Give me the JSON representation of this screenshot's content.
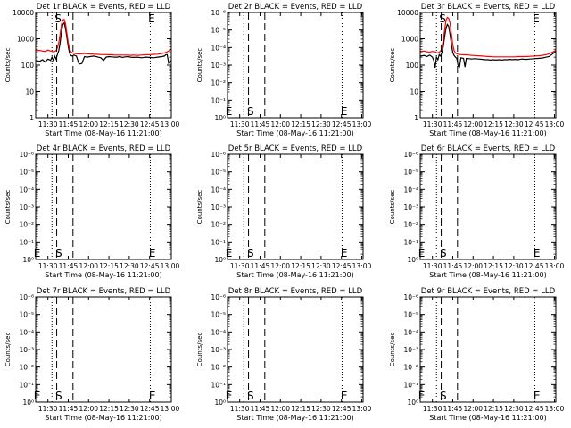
{
  "chart_data": [
    {
      "type": "line",
      "title": "Det 1r BLACK = Events, RED = LLD",
      "xlabel": "Start Time (08-May-16 11:21:00)",
      "ylabel": "Counts/sec",
      "x_ticks": [
        "11:30",
        "11:45",
        "12:00",
        "12:15",
        "12:30",
        "12:45",
        "13:00"
      ],
      "x_tick_minutes": [
        9,
        24,
        39,
        54,
        69,
        84,
        99
      ],
      "xlim_minutes": [
        0,
        100
      ],
      "y_scale": "log",
      "y_ticks": [
        "1",
        "10",
        "100",
        "1000",
        "10000"
      ],
      "ylim": [
        1,
        10000
      ],
      "vlines_dotted_minutes": [
        12,
        84.5
      ],
      "vlines_dashed_minutes": [
        15.5,
        27.5
      ],
      "markers": [
        {
          "label": "S",
          "x_minute": 16.5,
          "position": "top"
        },
        {
          "label": "E",
          "x_minute": 85.5,
          "position": "top"
        }
      ],
      "series": [
        {
          "name": "Events",
          "color": "#000000",
          "x": [
            0,
            3,
            5,
            7,
            9,
            11,
            12,
            13,
            14,
            15,
            16,
            17,
            18,
            19,
            20,
            21,
            22,
            23,
            24,
            25,
            26,
            27,
            28,
            29,
            30,
            32,
            34,
            36,
            38,
            40,
            43,
            46,
            48,
            50,
            52,
            54,
            56,
            58,
            60,
            62,
            64,
            66,
            68,
            70,
            72,
            75,
            78,
            81,
            84,
            87,
            90,
            93,
            95,
            96,
            97,
            98,
            99,
            100
          ],
          "y": [
            150,
            140,
            160,
            130,
            170,
            150,
            200,
            150,
            220,
            170,
            250,
            350,
            700,
            1800,
            3500,
            4000,
            2500,
            1100,
            500,
            280,
            230,
            220,
            240,
            230,
            220,
            110,
            115,
            210,
            200,
            210,
            220,
            200,
            190,
            150,
            200,
            210,
            205,
            200,
            200,
            210,
            195,
            205,
            210,
            200,
            195,
            200,
            190,
            200,
            195,
            190,
            200,
            210,
            220,
            250,
            250,
            120,
            140,
            150
          ]
        },
        {
          "name": "LLD",
          "color": "#ff0000",
          "x": [
            0,
            3,
            5,
            7,
            9,
            11,
            12,
            13,
            14,
            15,
            16,
            17,
            18,
            19,
            20,
            21,
            22,
            23,
            24,
            25,
            26,
            27,
            28,
            30,
            32,
            34,
            36,
            38,
            40,
            43,
            46,
            48,
            50,
            52,
            54,
            56,
            58,
            60,
            62,
            64,
            66,
            68,
            70,
            72,
            75,
            78,
            81,
            84,
            87,
            90,
            93,
            95,
            97,
            99,
            100
          ],
          "y": [
            350,
            360,
            340,
            330,
            370,
            340,
            330,
            320,
            330,
            350,
            450,
            700,
            1500,
            3500,
            5200,
            5500,
            3800,
            1600,
            700,
            400,
            320,
            290,
            280,
            270,
            265,
            270,
            275,
            270,
            265,
            260,
            255,
            250,
            250,
            250,
            245,
            245,
            240,
            240,
            240,
            240,
            240,
            240,
            235,
            240,
            235,
            240,
            245,
            250,
            255,
            260,
            275,
            290,
            320,
            370,
            400
          ]
        }
      ]
    },
    {
      "type": "line",
      "title": "Det 2r BLACK = Events, RED = LLD",
      "xlabel": "Start Time (08-May-16 11:21:00)",
      "ylabel": "Counts/sec",
      "x_ticks": [
        "11:30",
        "11:45",
        "12:00",
        "12:15",
        "12:30",
        "12:45",
        "13:00"
      ],
      "x_tick_minutes": [
        9,
        24,
        39,
        54,
        69,
        84,
        99
      ],
      "xlim_minutes": [
        0,
        100
      ],
      "y_scale": "log",
      "y_ticks": [
        "10⁰",
        "10⁻¹",
        "10⁻²",
        "10⁻³",
        "10⁻⁴",
        "10⁻⁵",
        "10⁻⁶"
      ],
      "ylim": [
        1,
        1e-06
      ],
      "vlines_dotted_minutes": [
        12,
        84.5
      ],
      "vlines_dashed_minutes": [
        15.5,
        27.5
      ],
      "markers": [
        {
          "label": "E",
          "x_minute": 1,
          "position": "bottom"
        },
        {
          "label": "S",
          "x_minute": 17,
          "position": "bottom"
        },
        {
          "label": "E",
          "x_minute": 86,
          "position": "bottom"
        }
      ],
      "series": []
    },
    {
      "type": "line",
      "title": "Det 3r BLACK = Events, RED = LLD",
      "xlabel": "Start Time (08-May-16 11:21:00)",
      "ylabel": "Counts/sec",
      "x_ticks": [
        "11:30",
        "11:45",
        "12:00",
        "12:15",
        "12:30",
        "12:45",
        "13:00"
      ],
      "x_tick_minutes": [
        9,
        24,
        39,
        54,
        69,
        84,
        99
      ],
      "xlim_minutes": [
        0,
        100
      ],
      "y_scale": "log",
      "y_ticks": [
        "1",
        "10",
        "100",
        "1000",
        "10000"
      ],
      "ylim": [
        1,
        10000
      ],
      "vlines_dotted_minutes": [
        12,
        84.5
      ],
      "vlines_dashed_minutes": [
        15.5,
        27.5
      ],
      "markers": [
        {
          "label": "S",
          "x_minute": 16.5,
          "position": "top"
        },
        {
          "label": "E",
          "x_minute": 85.5,
          "position": "top"
        }
      ],
      "series": [
        {
          "name": "Events",
          "color": "#000000",
          "x": [
            0,
            3,
            5,
            7,
            9,
            10,
            11,
            12,
            13,
            14,
            15,
            16,
            17,
            18,
            19,
            20,
            21,
            22,
            23,
            24,
            25,
            26,
            27,
            28,
            29,
            30,
            32,
            33,
            34,
            36,
            38,
            40,
            43,
            46,
            48,
            50,
            52,
            54,
            56,
            58,
            60,
            62,
            64,
            66,
            68,
            70,
            72,
            75,
            78,
            81,
            84,
            87,
            90,
            93,
            95,
            97,
            99,
            100
          ],
          "y": [
            220,
            230,
            210,
            240,
            200,
            150,
            80,
            200,
            160,
            250,
            220,
            300,
            500,
            1200,
            2500,
            3500,
            3000,
            1500,
            600,
            300,
            230,
            200,
            180,
            90,
            85,
            190,
            180,
            85,
            180,
            175,
            170,
            175,
            170,
            165,
            160,
            160,
            155,
            160,
            155,
            160,
            155,
            160,
            160,
            165,
            160,
            165,
            160,
            170,
            165,
            170,
            175,
            180,
            185,
            200,
            210,
            250,
            300,
            320
          ]
        },
        {
          "name": "LLD",
          "color": "#ff0000",
          "x": [
            0,
            3,
            5,
            7,
            9,
            11,
            12,
            13,
            14,
            15,
            16,
            17,
            18,
            19,
            20,
            21,
            22,
            23,
            24,
            25,
            26,
            27,
            28,
            30,
            32,
            34,
            36,
            38,
            40,
            43,
            46,
            48,
            50,
            52,
            54,
            56,
            58,
            60,
            62,
            64,
            66,
            68,
            70,
            72,
            75,
            78,
            81,
            84,
            87,
            90,
            93,
            95,
            97,
            99,
            100
          ],
          "y": [
            330,
            340,
            320,
            310,
            330,
            320,
            300,
            290,
            310,
            340,
            450,
            900,
            2200,
            5000,
            6500,
            6000,
            4000,
            1500,
            600,
            350,
            290,
            270,
            260,
            250,
            245,
            245,
            240,
            235,
            230,
            225,
            220,
            215,
            210,
            210,
            205,
            205,
            205,
            205,
            205,
            205,
            205,
            205,
            205,
            210,
            210,
            210,
            215,
            220,
            225,
            235,
            250,
            270,
            300,
            340,
            360
          ]
        }
      ]
    },
    {
      "type": "line",
      "title": "Det 4r BLACK = Events, RED = LLD",
      "xlabel": "Start Time (08-May-16 11:21:00)",
      "ylabel": "Counts/sec",
      "x_ticks": [
        "11:30",
        "11:45",
        "12:00",
        "12:15",
        "12:30",
        "12:45",
        "13:00"
      ],
      "x_tick_minutes": [
        9,
        24,
        39,
        54,
        69,
        84,
        99
      ],
      "xlim_minutes": [
        0,
        100
      ],
      "y_scale": "log",
      "y_ticks": [
        "10⁰",
        "10⁻¹",
        "10⁻²",
        "10⁻³",
        "10⁻⁴",
        "10⁻⁵",
        "10⁻⁶"
      ],
      "ylim": [
        1,
        1e-06
      ],
      "vlines_dotted_minutes": [
        12,
        84.5
      ],
      "vlines_dashed_minutes": [
        15.5,
        27.5
      ],
      "markers": [
        {
          "label": "E",
          "x_minute": 1,
          "position": "bottom"
        },
        {
          "label": "S",
          "x_minute": 17,
          "position": "bottom"
        },
        {
          "label": "E",
          "x_minute": 86,
          "position": "bottom"
        }
      ],
      "series": []
    },
    {
      "type": "line",
      "title": "Det 5r BLACK = Events, RED = LLD",
      "xlabel": "Start Time (08-May-16 11:21:00)",
      "ylabel": "Counts/sec",
      "x_ticks": [
        "11:30",
        "11:45",
        "12:00",
        "12:15",
        "12:30",
        "12:45",
        "13:00"
      ],
      "x_tick_minutes": [
        9,
        24,
        39,
        54,
        69,
        84,
        99
      ],
      "xlim_minutes": [
        0,
        100
      ],
      "y_scale": "log",
      "y_ticks": [
        "10⁰",
        "10⁻¹",
        "10⁻²",
        "10⁻³",
        "10⁻⁴",
        "10⁻⁵",
        "10⁻⁶"
      ],
      "ylim": [
        1,
        1e-06
      ],
      "vlines_dotted_minutes": [
        12,
        84.5
      ],
      "vlines_dashed_minutes": [
        15.5,
        27.5
      ],
      "markers": [
        {
          "label": "E",
          "x_minute": 1,
          "position": "bottom"
        },
        {
          "label": "S",
          "x_minute": 17,
          "position": "bottom"
        },
        {
          "label": "E",
          "x_minute": 86,
          "position": "bottom"
        }
      ],
      "series": []
    },
    {
      "type": "line",
      "title": "Det 6r BLACK = Events, RED = LLD",
      "xlabel": "Start Time (08-May-16 11:21:00)",
      "ylabel": "Counts/sec",
      "x_ticks": [
        "11:30",
        "11:45",
        "12:00",
        "12:15",
        "12:30",
        "12:45",
        "13:00"
      ],
      "x_tick_minutes": [
        9,
        24,
        39,
        54,
        69,
        84,
        99
      ],
      "xlim_minutes": [
        0,
        100
      ],
      "y_scale": "log",
      "y_ticks": [
        "10⁰",
        "10⁻¹",
        "10⁻²",
        "10⁻³",
        "10⁻⁴",
        "10⁻⁵",
        "10⁻⁶"
      ],
      "ylim": [
        1,
        1e-06
      ],
      "vlines_dotted_minutes": [
        12,
        84.5
      ],
      "vlines_dashed_minutes": [
        15.5,
        27.5
      ],
      "markers": [
        {
          "label": "E",
          "x_minute": 1,
          "position": "bottom"
        },
        {
          "label": "S",
          "x_minute": 17,
          "position": "bottom"
        },
        {
          "label": "E",
          "x_minute": 86,
          "position": "bottom"
        }
      ],
      "series": []
    },
    {
      "type": "line",
      "title": "Det 7r BLACK = Events, RED = LLD",
      "xlabel": "Start Time (08-May-16 11:21:00)",
      "ylabel": "Counts/sec",
      "x_ticks": [
        "11:30",
        "11:45",
        "12:00",
        "12:15",
        "12:30",
        "12:45",
        "13:00"
      ],
      "x_tick_minutes": [
        9,
        24,
        39,
        54,
        69,
        84,
        99
      ],
      "xlim_minutes": [
        0,
        100
      ],
      "y_scale": "log",
      "y_ticks": [
        "10⁰",
        "10⁻¹",
        "10⁻²",
        "10⁻³",
        "10⁻⁴",
        "10⁻⁵",
        "10⁻⁶"
      ],
      "ylim": [
        1,
        1e-06
      ],
      "vlines_dotted_minutes": [
        12,
        84.5
      ],
      "vlines_dashed_minutes": [
        15.5,
        27.5
      ],
      "markers": [
        {
          "label": "E",
          "x_minute": 1,
          "position": "bottom"
        },
        {
          "label": "S",
          "x_minute": 17,
          "position": "bottom"
        },
        {
          "label": "E",
          "x_minute": 86,
          "position": "bottom"
        }
      ],
      "series": []
    },
    {
      "type": "line",
      "title": "Det 8r BLACK = Events, RED = LLD",
      "xlabel": "Start Time (08-May-16 11:21:00)",
      "ylabel": "Counts/sec",
      "x_ticks": [
        "11:30",
        "11:45",
        "12:00",
        "12:15",
        "12:30",
        "12:45",
        "13:00"
      ],
      "x_tick_minutes": [
        9,
        24,
        39,
        54,
        69,
        84,
        99
      ],
      "xlim_minutes": [
        0,
        100
      ],
      "y_scale": "log",
      "y_ticks": [
        "10⁰",
        "10⁻¹",
        "10⁻²",
        "10⁻³",
        "10⁻⁴",
        "10⁻⁵",
        "10⁻⁶"
      ],
      "ylim": [
        1,
        1e-06
      ],
      "vlines_dotted_minutes": [
        12,
        84.5
      ],
      "vlines_dashed_minutes": [
        15.5,
        27.5
      ],
      "markers": [
        {
          "label": "E",
          "x_minute": 1,
          "position": "bottom"
        },
        {
          "label": "S",
          "x_minute": 17,
          "position": "bottom"
        },
        {
          "label": "E",
          "x_minute": 86,
          "position": "bottom"
        }
      ],
      "series": []
    },
    {
      "type": "line",
      "title": "Det 9r BLACK = Events, RED = LLD",
      "xlabel": "Start Time (08-May-16 11:21:00)",
      "ylabel": "Counts/sec",
      "x_ticks": [
        "11:30",
        "11:45",
        "12:00",
        "12:15",
        "12:30",
        "12:45",
        "13:00"
      ],
      "x_tick_minutes": [
        9,
        24,
        39,
        54,
        69,
        84,
        99
      ],
      "xlim_minutes": [
        0,
        100
      ],
      "y_scale": "log",
      "y_ticks": [
        "10⁰",
        "10⁻¹",
        "10⁻²",
        "10⁻³",
        "10⁻⁴",
        "10⁻⁵",
        "10⁻⁶"
      ],
      "ylim": [
        1,
        1e-06
      ],
      "vlines_dotted_minutes": [
        12,
        84.5
      ],
      "vlines_dashed_minutes": [
        15.5,
        27.5
      ],
      "markers": [
        {
          "label": "E",
          "x_minute": 1,
          "position": "bottom"
        },
        {
          "label": "S",
          "x_minute": 17,
          "position": "bottom"
        },
        {
          "label": "E",
          "x_minute": 86,
          "position": "bottom"
        }
      ],
      "series": []
    }
  ]
}
